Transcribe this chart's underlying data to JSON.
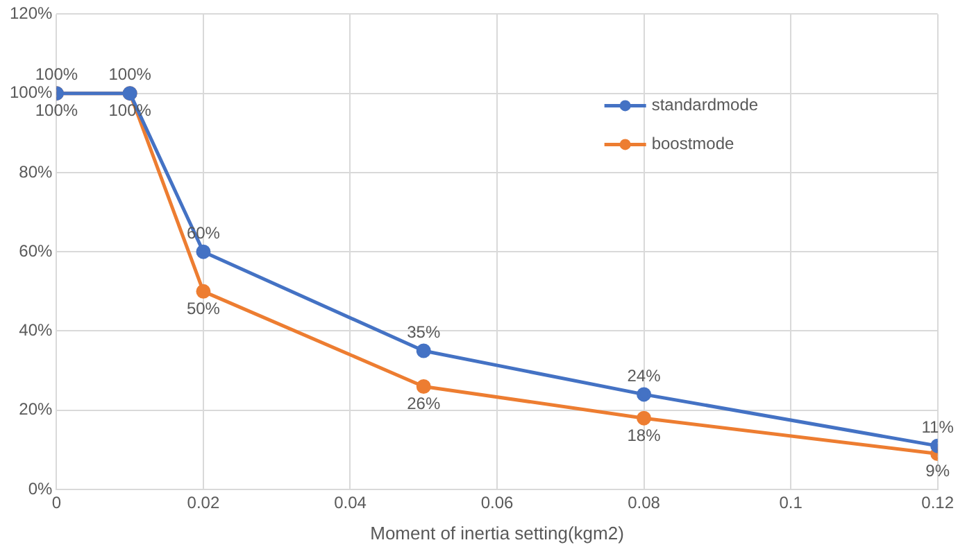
{
  "chart_data": {
    "type": "line",
    "xlabel": "Moment of inertia setting(kgm2)",
    "x": [
      0,
      0.01,
      0.02,
      0.05,
      0.08,
      0.12
    ],
    "series": [
      {
        "name": "standardmode",
        "color": "#4472c4",
        "values": [
          100,
          100,
          60,
          35,
          24,
          11
        ],
        "value_labels": [
          "100%",
          "100%",
          "60%",
          "35%",
          "24%",
          "11%"
        ]
      },
      {
        "name": "boostmode",
        "color": "#ed7d31",
        "values": [
          100,
          100,
          50,
          26,
          18,
          9
        ],
        "value_labels": [
          "100%",
          "100%",
          "50%",
          "26%",
          "18%",
          "9%"
        ]
      }
    ],
    "xlim": [
      0,
      0.12
    ],
    "xticks": [
      0,
      0.02,
      0.04,
      0.06,
      0.08,
      0.1,
      0.12
    ],
    "ylim": [
      0,
      120
    ],
    "yticks": [
      {
        "value": 0,
        "label": "0%"
      },
      {
        "value": 20,
        "label": "20%"
      },
      {
        "value": 40,
        "label": "40%"
      },
      {
        "value": 60,
        "label": "60%"
      },
      {
        "value": 80,
        "label": "80%"
      },
      {
        "value": 100,
        "label": "100%"
      },
      {
        "value": 120,
        "label": "120%"
      }
    ],
    "grid": true,
    "legend": "top right",
    "marker": "circle",
    "line_style": "solid"
  }
}
